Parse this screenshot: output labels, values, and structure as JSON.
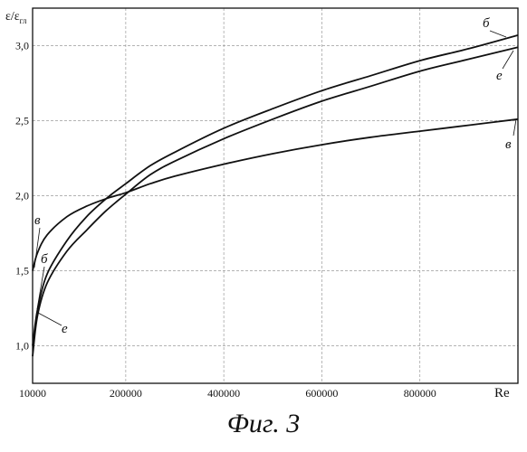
{
  "chart_data": {
    "type": "line",
    "ylabel": "ε/ε",
    "ylabel_sub": "гл",
    "xlabel": "Re",
    "xlim": [
      10000,
      1000000
    ],
    "ylim": [
      0.75,
      3.25
    ],
    "x_ticks": [
      {
        "value": 10000,
        "label": "10000"
      },
      {
        "value": 200000,
        "label": "200000"
      },
      {
        "value": 400000,
        "label": "400000"
      },
      {
        "value": 600000,
        "label": "600000"
      },
      {
        "value": 800000,
        "label": "800000"
      }
    ],
    "y_ticks": [
      {
        "value": 1.0,
        "label": "1,0"
      },
      {
        "value": 1.5,
        "label": "1,5"
      },
      {
        "value": 2.0,
        "label": "2,0"
      },
      {
        "value": 2.5,
        "label": "2,5"
      },
      {
        "value": 3.0,
        "label": "3,0"
      }
    ],
    "grid": true,
    "series": [
      {
        "name": "б",
        "x": [
          10000,
          20000,
          40000,
          80000,
          120000,
          160000,
          200000,
          250000,
          300000,
          400000,
          500000,
          600000,
          700000,
          800000,
          900000,
          1000000
        ],
        "y": [
          1.0,
          1.24,
          1.48,
          1.7,
          1.86,
          1.98,
          2.08,
          2.2,
          2.29,
          2.45,
          2.58,
          2.7,
          2.8,
          2.9,
          2.98,
          3.07
        ]
      },
      {
        "name": "е",
        "x": [
          10000,
          20000,
          40000,
          80000,
          120000,
          160000,
          200000,
          250000,
          300000,
          400000,
          500000,
          600000,
          700000,
          800000,
          900000,
          1000000
        ],
        "y": [
          0.93,
          1.2,
          1.42,
          1.63,
          1.77,
          1.9,
          2.01,
          2.14,
          2.23,
          2.38,
          2.51,
          2.63,
          2.73,
          2.83,
          2.91,
          2.99
        ]
      },
      {
        "name": "в",
        "x": [
          10000,
          20000,
          40000,
          80000,
          120000,
          160000,
          200000,
          250000,
          300000,
          400000,
          500000,
          600000,
          700000,
          800000,
          900000,
          1000000
        ],
        "y": [
          1.5,
          1.62,
          1.74,
          1.86,
          1.93,
          1.98,
          2.02,
          2.08,
          2.13,
          2.21,
          2.28,
          2.34,
          2.39,
          2.43,
          2.47,
          2.51
        ]
      }
    ]
  },
  "caption": "Фиг. 3"
}
